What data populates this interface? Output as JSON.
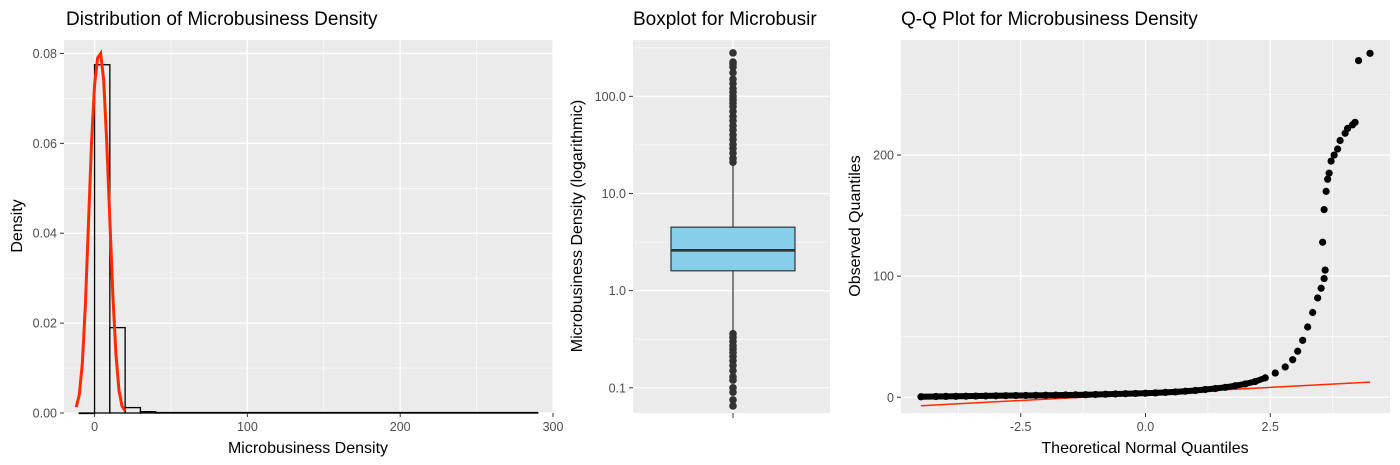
{
  "chart_data": [
    {
      "type": "histogram",
      "title": "Distribution of Microbusiness Density",
      "xlabel": "Microbusiness Density",
      "ylabel": "Density",
      "xlim": [
        -20,
        300
      ],
      "ylim": [
        0,
        0.083
      ],
      "x_ticks": [
        0,
        100,
        200,
        300
      ],
      "x_tick_labels": [
        "0",
        "100",
        "200",
        "300"
      ],
      "y_ticks": [
        0,
        0.02,
        0.04,
        0.06,
        0.08
      ],
      "y_tick_labels": [
        "0.00",
        "0.02",
        "0.04",
        "0.06",
        "0.08"
      ],
      "grid": true,
      "bins": [
        {
          "x0": -10,
          "x1": 0,
          "density": 0.0
        },
        {
          "x0": 0,
          "x1": 10,
          "density": 0.0775
        },
        {
          "x0": 10,
          "x1": 20,
          "density": 0.019
        },
        {
          "x0": 20,
          "x1": 30,
          "density": 0.0012
        },
        {
          "x0": 30,
          "x1": 40,
          "density": 0.0003
        },
        {
          "x0": 40,
          "x1": 290,
          "density": 0.0001
        }
      ],
      "density_curve": {
        "color": "#ff2a00",
        "points": [
          [
            -12,
            0.0013
          ],
          [
            -10,
            0.004
          ],
          [
            -8,
            0.011
          ],
          [
            -6,
            0.024
          ],
          [
            -4,
            0.042
          ],
          [
            -2,
            0.06
          ],
          [
            0,
            0.073
          ],
          [
            2,
            0.079
          ],
          [
            4,
            0.08
          ],
          [
            6,
            0.074
          ],
          [
            8,
            0.06
          ],
          [
            10,
            0.043
          ],
          [
            12,
            0.026
          ],
          [
            14,
            0.013
          ],
          [
            16,
            0.005
          ],
          [
            18,
            0.0015
          ],
          [
            20,
            0.0005
          ]
        ]
      }
    },
    {
      "type": "boxplot",
      "title": "Boxplot for Microbusir",
      "xlabel": "",
      "ylabel": "Microbusiness Density (logarithmic)",
      "y_scale": "log10",
      "ylim": [
        0.055,
        380
      ],
      "y_ticks": [
        0.1,
        1,
        10,
        100
      ],
      "y_tick_labels": [
        "0.1",
        "1.0",
        "10.0",
        "100.0"
      ],
      "grid": true,
      "box": {
        "whisker_low": 0.38,
        "q1": 1.6,
        "median": 2.6,
        "q3": 4.5,
        "whisker_high": 20.5,
        "fill": "#87ceeb"
      },
      "outliers_high": [
        21,
        23,
        26,
        29,
        32,
        36,
        40,
        45,
        50,
        56,
        62,
        70,
        78,
        85,
        92,
        100,
        110,
        120,
        135,
        150,
        175,
        200,
        215,
        225,
        280
      ],
      "outliers_low": [
        0.36,
        0.33,
        0.3,
        0.27,
        0.25,
        0.23,
        0.21,
        0.19,
        0.17,
        0.15,
        0.13,
        0.12,
        0.1,
        0.09,
        0.075,
        0.065
      ]
    },
    {
      "type": "scatter",
      "title": "Q-Q Plot for Microbusiness Density",
      "xlabel": "Theoretical Normal Quantiles",
      "ylabel": "Observed Quantiles",
      "xlim": [
        -4.9,
        4.9
      ],
      "ylim": [
        -13,
        295
      ],
      "x_ticks": [
        -2.5,
        0,
        2.5
      ],
      "x_tick_labels": [
        "-2.5",
        "0.0",
        "2.5"
      ],
      "y_ticks": [
        0,
        100,
        200
      ],
      "y_tick_labels": [
        "0",
        "100",
        "200"
      ],
      "grid": true,
      "reference_line": {
        "color": "#ff2a00",
        "x": [
          -4.5,
          4.5
        ],
        "y": [
          -7,
          12.5
        ]
      },
      "points": [
        [
          -4.5,
          0.4
        ],
        [
          -4.2,
          0.6
        ],
        [
          -4.0,
          0.7
        ],
        [
          -3.8,
          0.8
        ],
        [
          -3.6,
          0.9
        ],
        [
          -3.4,
          1.0
        ],
        [
          -3.2,
          1.1
        ],
        [
          -3.0,
          1.2
        ],
        [
          -2.8,
          1.3
        ],
        [
          -2.6,
          1.4
        ],
        [
          -2.4,
          1.5
        ],
        [
          -2.2,
          1.6
        ],
        [
          -2.0,
          1.7
        ],
        [
          -1.8,
          1.8
        ],
        [
          -1.6,
          1.9
        ],
        [
          -1.4,
          2.0
        ],
        [
          -1.2,
          2.1
        ],
        [
          -1.0,
          2.3
        ],
        [
          -0.8,
          2.5
        ],
        [
          -0.6,
          2.7
        ],
        [
          -0.4,
          2.9
        ],
        [
          -0.2,
          3.1
        ],
        [
          0.0,
          3.3
        ],
        [
          0.2,
          3.6
        ],
        [
          0.4,
          4.0
        ],
        [
          0.6,
          4.4
        ],
        [
          0.8,
          5.0
        ],
        [
          1.0,
          5.6
        ],
        [
          1.2,
          6.4
        ],
        [
          1.4,
          7.2
        ],
        [
          1.6,
          8.2
        ],
        [
          1.8,
          9.5
        ],
        [
          2.0,
          11.0
        ],
        [
          2.2,
          13.0
        ],
        [
          2.4,
          16.0
        ],
        [
          2.6,
          20.0
        ],
        [
          2.8,
          25.0
        ],
        [
          2.95,
          31.0
        ],
        [
          3.05,
          38.0
        ],
        [
          3.15,
          47.0
        ],
        [
          3.25,
          58.0
        ],
        [
          3.35,
          70.0
        ],
        [
          3.45,
          82.0
        ],
        [
          3.52,
          90.0
        ],
        [
          3.58,
          98.0
        ],
        [
          3.6,
          105.0
        ],
        [
          3.55,
          128.0
        ],
        [
          3.58,
          155.0
        ],
        [
          3.62,
          170.0
        ],
        [
          3.65,
          180.0
        ],
        [
          3.68,
          185.0
        ],
        [
          3.72,
          195.0
        ],
        [
          3.78,
          200.0
        ],
        [
          3.85,
          205.0
        ],
        [
          3.9,
          212.0
        ],
        [
          4.0,
          218.0
        ],
        [
          4.05,
          222.0
        ],
        [
          4.15,
          225.0
        ],
        [
          4.2,
          227.0
        ],
        [
          4.27,
          278.0
        ],
        [
          4.5,
          284.0
        ]
      ]
    }
  ]
}
